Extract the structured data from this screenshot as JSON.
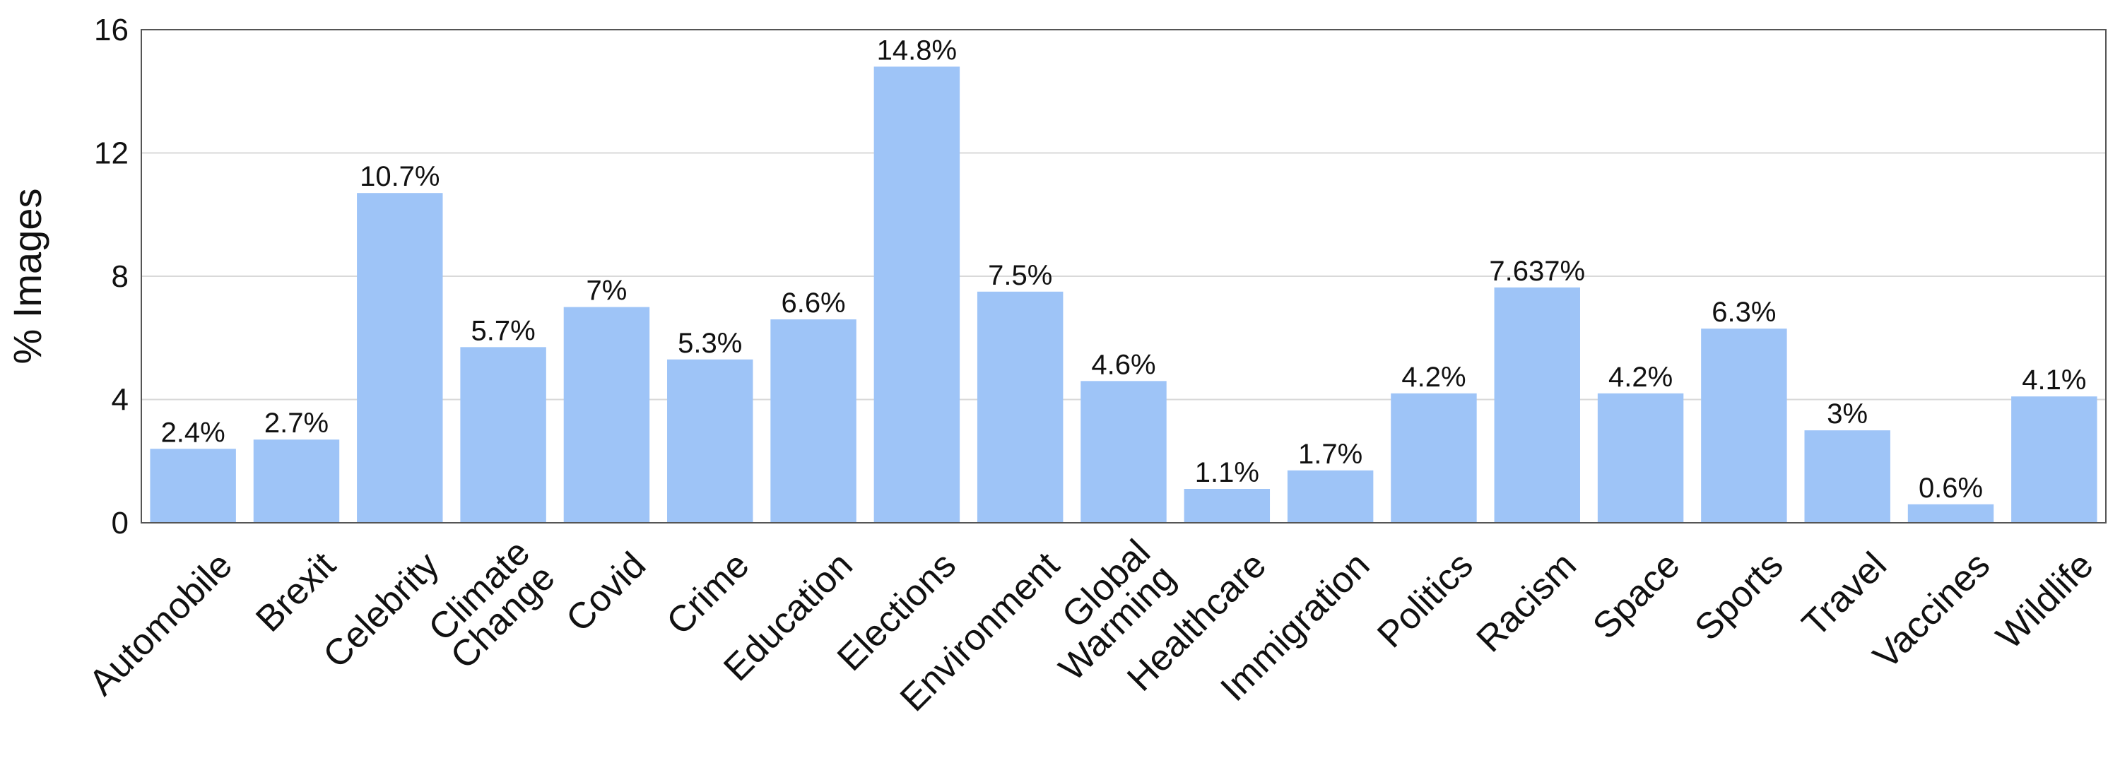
{
  "chart_data": {
    "type": "bar",
    "title": "",
    "xlabel": "",
    "ylabel": "% Images",
    "ylim": [
      0,
      16
    ],
    "yticks": [
      0,
      4,
      8,
      12,
      16
    ],
    "grid": true,
    "bar_color": "#9EC4F7",
    "categories": [
      "Automobile",
      "Brexit",
      "Celebrity",
      "Climate Change",
      "Covid",
      "Crime",
      "Education",
      "Elections",
      "Environment",
      "Global Warming",
      "Healthcare",
      "Immigration",
      "Politics",
      "Racism",
      "Space",
      "Sports",
      "Travel",
      "Vaccines",
      "Wildlife"
    ],
    "values": [
      2.4,
      2.7,
      10.7,
      5.7,
      7,
      5.3,
      6.6,
      14.8,
      7.5,
      4.6,
      1.1,
      1.7,
      4.2,
      7.637,
      4.2,
      6.3,
      3,
      0.6,
      4.1
    ],
    "data_labels": [
      "2.4%",
      "2.7%",
      "10.7%",
      "5.7%",
      "7%",
      "5.3%",
      "6.6%",
      "14.8%",
      "7.5%",
      "4.6%",
      "1.1%",
      "1.7%",
      "4.2%",
      "7.637%",
      "4.2%",
      "6.3%",
      "3%",
      "0.6%",
      "4.1%"
    ]
  }
}
